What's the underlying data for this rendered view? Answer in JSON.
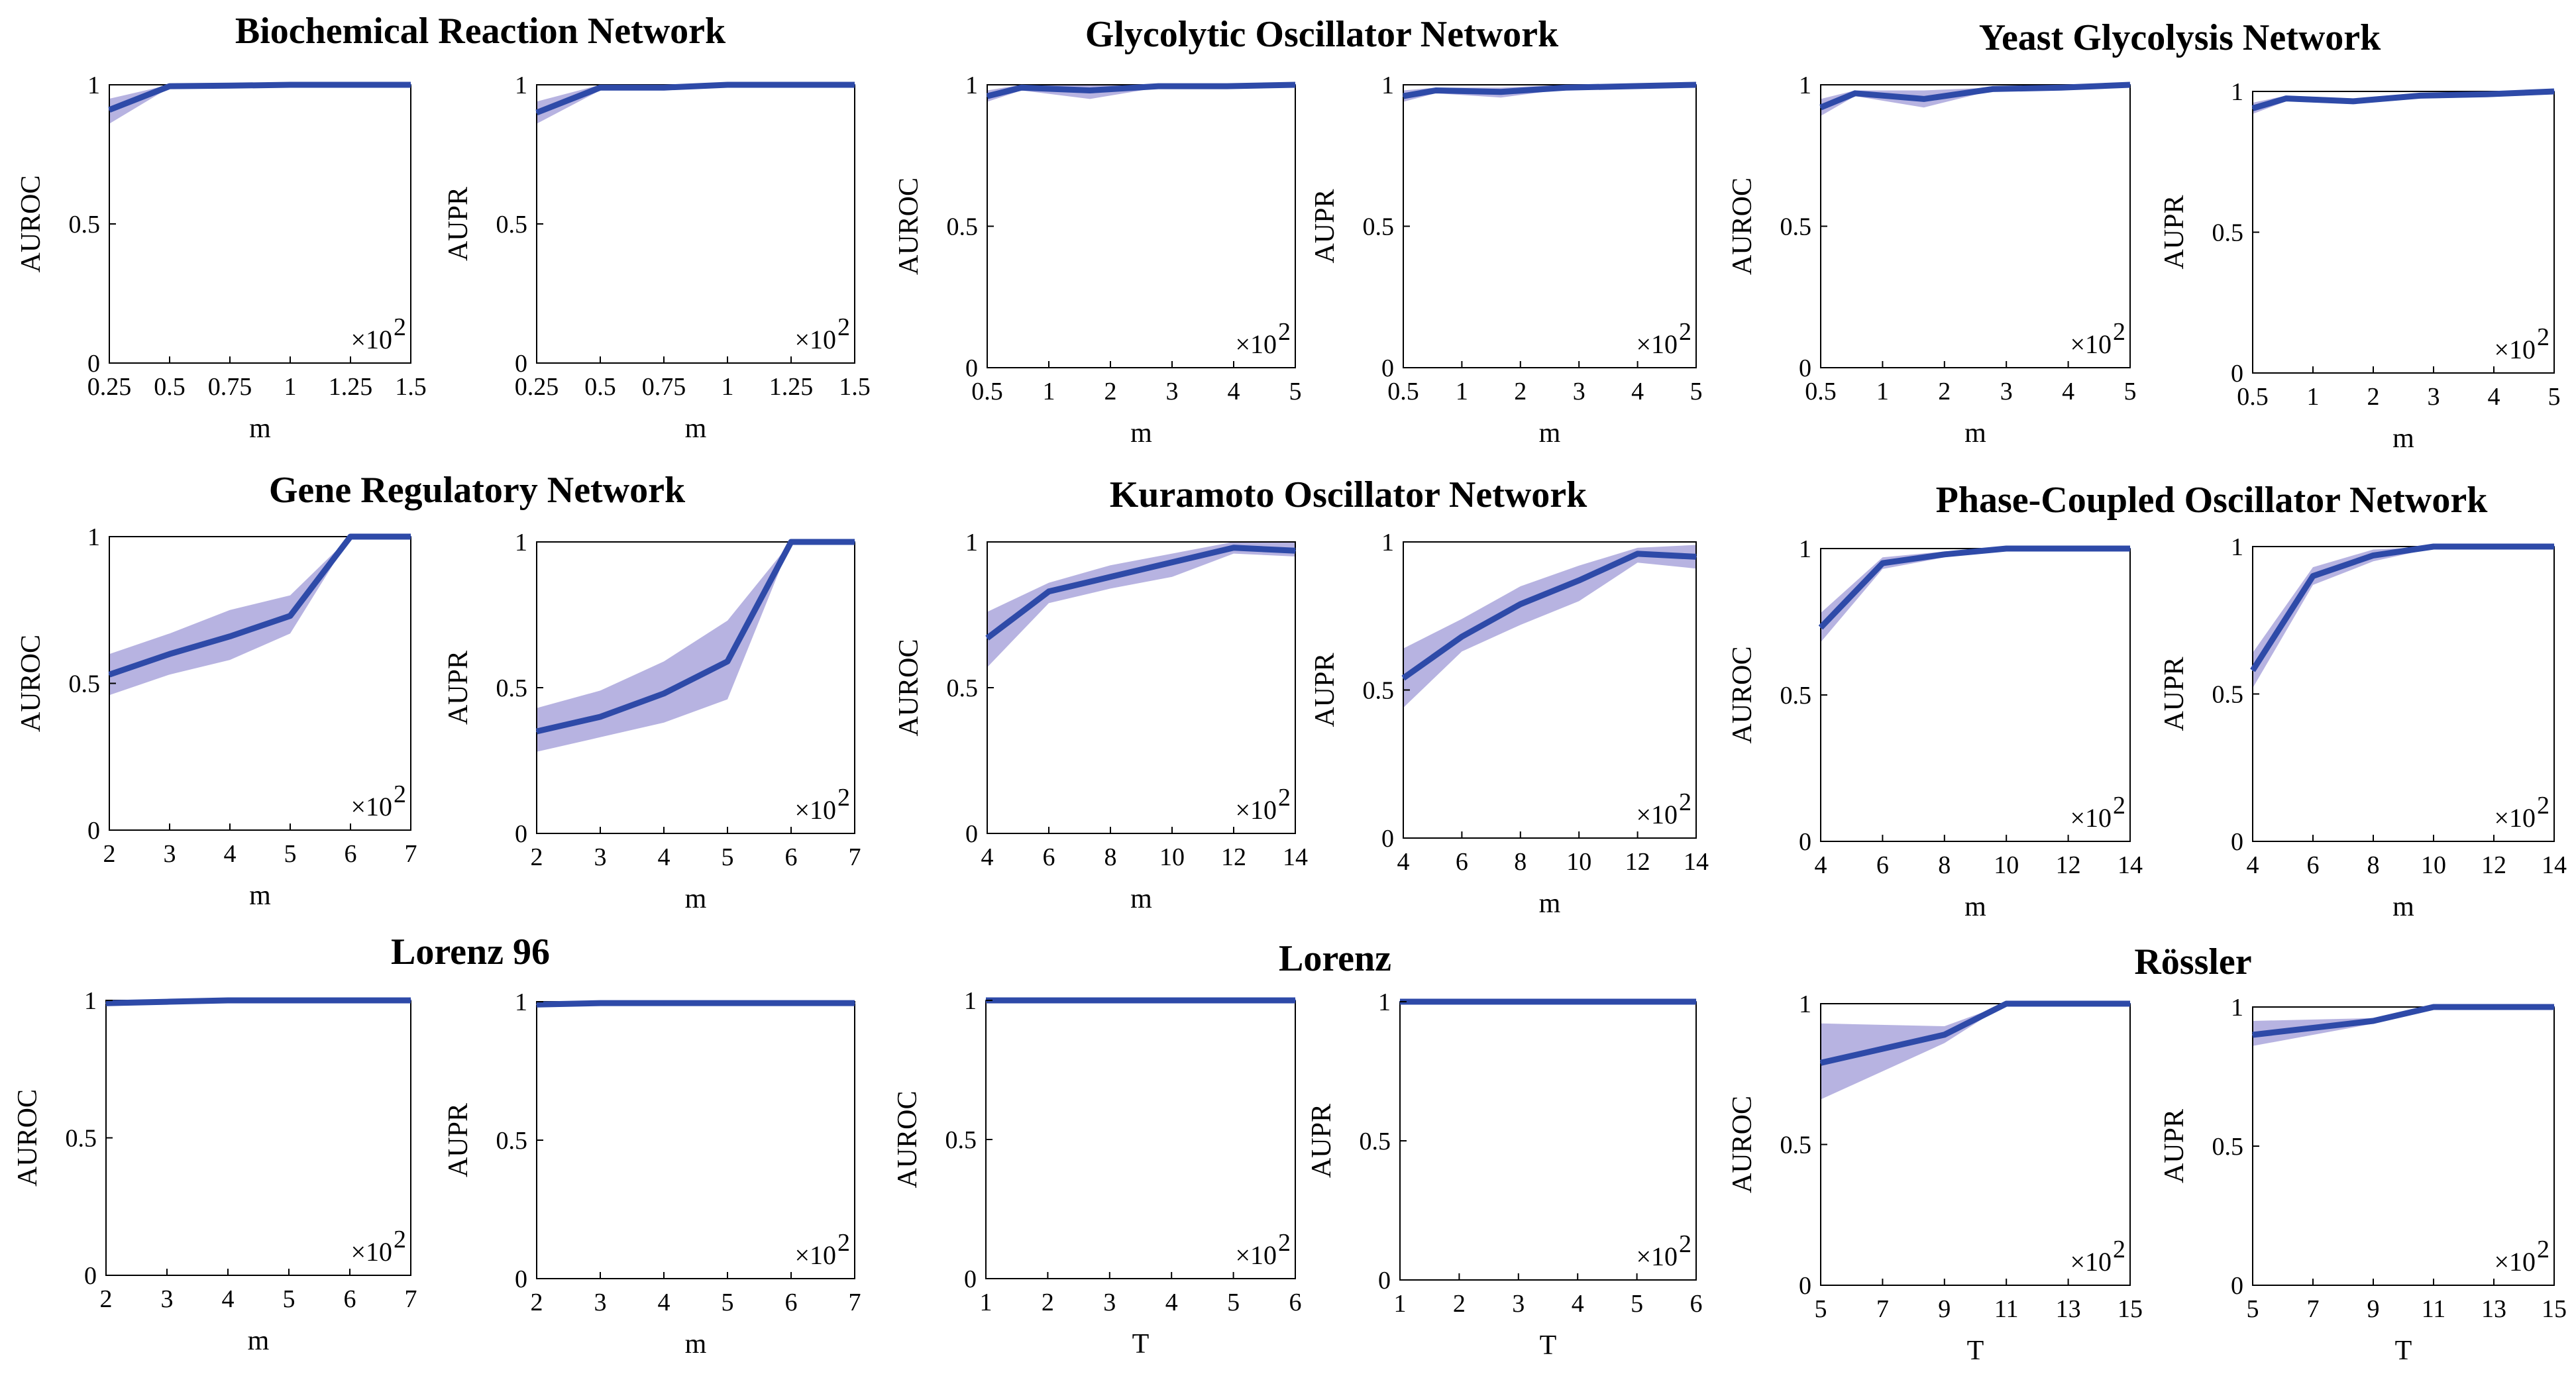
{
  "figure": {
    "group_titles": [
      "Biochemical Reaction Network",
      "Glycolytic Oscillator Network",
      "Yeast Glycolysis Network",
      "Gene Regulatory Network",
      "Kuramoto Oscillator Network",
      "Phase-Coupled Oscillator Network",
      "Lorenz 96",
      "Lorenz",
      "Rössler"
    ],
    "multiplier_label": "×10",
    "multiplier_exp": "2",
    "colors": {
      "line": "#2e4aa8",
      "band": "#aaa6dc",
      "axis": "#000000"
    }
  },
  "chart_data": [
    {
      "type": "line",
      "group": "Biochemical Reaction Network",
      "xlabel": "m",
      "ylabel": "AUROC",
      "multiplier": "×10^2",
      "x": [
        0.25,
        0.5,
        0.75,
        1,
        1.25,
        1.5
      ],
      "xticks": [
        "0.25",
        "0.5",
        "0.75",
        "1",
        "1.25",
        "1.5"
      ],
      "xlim": [
        0.25,
        1.5
      ],
      "yticks": [
        "0",
        "0.5",
        "1"
      ],
      "ylim": [
        0,
        1
      ],
      "y": [
        0.91,
        0.995,
        0.997,
        1,
        1,
        1
      ],
      "lower": [
        0.86,
        0.99,
        0.995,
        1,
        1,
        1
      ],
      "upper": [
        0.95,
        1,
        1,
        1,
        1,
        1
      ]
    },
    {
      "type": "line",
      "group": "Biochemical Reaction Network",
      "xlabel": "m",
      "ylabel": "AUPR",
      "multiplier": "×10^2",
      "x": [
        0.25,
        0.5,
        0.75,
        1,
        1.25,
        1.5
      ],
      "xticks": [
        "0.25",
        "0.5",
        "0.75",
        "1",
        "1.25",
        "1.5"
      ],
      "xlim": [
        0.25,
        1.5
      ],
      "yticks": [
        "0",
        "0.5",
        "1"
      ],
      "ylim": [
        0,
        1
      ],
      "y": [
        0.9,
        0.99,
        0.99,
        1,
        1,
        1
      ],
      "lower": [
        0.86,
        0.98,
        0.985,
        0.998,
        1,
        1
      ],
      "upper": [
        0.94,
        1,
        1,
        1,
        1,
        1
      ]
    },
    {
      "type": "line",
      "group": "Glycolytic Oscillator Network",
      "xlabel": "m",
      "ylabel": "AUROC",
      "multiplier": "×10^2",
      "x": [
        0.5,
        1,
        2,
        3,
        4,
        5
      ],
      "xticks": [
        "0.5",
        "1",
        "2",
        "3",
        "4",
        "5"
      ],
      "xlim": [
        0.5,
        5
      ],
      "yticks": [
        "0",
        "0.5",
        "1"
      ],
      "ylim": [
        0,
        1
      ],
      "y": [
        0.96,
        0.99,
        0.98,
        0.995,
        0.995,
        1
      ],
      "lower": [
        0.94,
        0.98,
        0.95,
        0.99,
        0.99,
        1
      ],
      "upper": [
        0.98,
        1,
        1,
        1,
        1,
        1
      ]
    },
    {
      "type": "line",
      "group": "Glycolytic Oscillator Network",
      "xlabel": "m",
      "ylabel": "AUPR",
      "multiplier": "×10^2",
      "x": [
        0.5,
        1,
        2,
        3,
        4,
        5
      ],
      "xticks": [
        "0.5",
        "1",
        "2",
        "3",
        "4",
        "5"
      ],
      "xlim": [
        0.5,
        5
      ],
      "yticks": [
        "0",
        "0.5",
        "1"
      ],
      "ylim": [
        0,
        1
      ],
      "y": [
        0.96,
        0.98,
        0.975,
        0.99,
        0.995,
        1
      ],
      "lower": [
        0.94,
        0.97,
        0.955,
        0.985,
        0.99,
        1
      ],
      "upper": [
        0.98,
        0.99,
        0.99,
        1,
        1,
        1
      ]
    },
    {
      "type": "line",
      "group": "Yeast Glycolysis Network",
      "xlabel": "m",
      "ylabel": "AUROC",
      "multiplier": "×10^2",
      "x": [
        0.5,
        1,
        2,
        3,
        4,
        5
      ],
      "xticks": [
        "0.5",
        "1",
        "2",
        "3",
        "4",
        "5"
      ],
      "xlim": [
        0.5,
        5
      ],
      "yticks": [
        "0",
        "0.5",
        "1"
      ],
      "ylim": [
        0,
        1
      ],
      "y": [
        0.92,
        0.97,
        0.95,
        0.985,
        0.99,
        1
      ],
      "lower": [
        0.89,
        0.96,
        0.92,
        0.98,
        0.985,
        1
      ],
      "upper": [
        0.95,
        0.98,
        0.98,
        0.99,
        1,
        1
      ]
    },
    {
      "type": "line",
      "group": "Yeast Glycolysis Network",
      "xlabel": "m",
      "ylabel": "AUPR",
      "multiplier": "×10^2",
      "x": [
        0.5,
        1,
        2,
        3,
        4,
        5
      ],
      "xticks": [
        "0.5",
        "1",
        "2",
        "3",
        "4",
        "5"
      ],
      "xlim": [
        0.5,
        5
      ],
      "yticks": [
        "0",
        "0.5",
        "1"
      ],
      "ylim": [
        0,
        1
      ],
      "y": [
        0.94,
        0.975,
        0.965,
        0.985,
        0.99,
        1
      ],
      "lower": [
        0.92,
        0.965,
        0.955,
        0.975,
        0.98,
        0.99
      ],
      "upper": [
        0.96,
        0.985,
        0.975,
        0.995,
        1,
        1
      ]
    },
    {
      "type": "line",
      "group": "Gene Regulatory Network",
      "xlabel": "m",
      "ylabel": "AUROC",
      "multiplier": "×10^2",
      "x": [
        2,
        3,
        4,
        5,
        6,
        7
      ],
      "xticks": [
        "2",
        "3",
        "4",
        "5",
        "6",
        "7"
      ],
      "xlim": [
        2,
        7
      ],
      "yticks": [
        "0",
        "0.5",
        "1"
      ],
      "ylim": [
        0,
        1
      ],
      "y": [
        0.53,
        0.6,
        0.66,
        0.73,
        1,
        1
      ],
      "lower": [
        0.46,
        0.53,
        0.58,
        0.67,
        1,
        1
      ],
      "upper": [
        0.6,
        0.67,
        0.75,
        0.8,
        1,
        1
      ]
    },
    {
      "type": "line",
      "group": "Gene Regulatory Network",
      "xlabel": "m",
      "ylabel": "AUPR",
      "multiplier": "×10^2",
      "x": [
        2,
        3,
        4,
        5,
        6,
        7
      ],
      "xticks": [
        "2",
        "3",
        "4",
        "5",
        "6",
        "7"
      ],
      "xlim": [
        2,
        7
      ],
      "yticks": [
        "0",
        "0.5",
        "1"
      ],
      "ylim": [
        0,
        1
      ],
      "y": [
        0.35,
        0.4,
        0.48,
        0.59,
        1,
        1
      ],
      "lower": [
        0.28,
        0.33,
        0.38,
        0.46,
        1,
        1
      ],
      "upper": [
        0.43,
        0.49,
        0.59,
        0.73,
        1,
        1
      ]
    },
    {
      "type": "line",
      "group": "Kuramoto Oscillator Network",
      "xlabel": "m",
      "ylabel": "AUROC",
      "multiplier": "×10^2",
      "x": [
        4,
        6,
        8,
        10,
        12,
        14
      ],
      "xticks": [
        "4",
        "6",
        "8",
        "10",
        "12",
        "14"
      ],
      "xlim": [
        4,
        14
      ],
      "yticks": [
        "0",
        "0.5",
        "1"
      ],
      "ylim": [
        0,
        1
      ],
      "y": [
        0.67,
        0.83,
        0.88,
        0.93,
        0.98,
        0.97
      ],
      "lower": [
        0.57,
        0.79,
        0.84,
        0.88,
        0.96,
        0.95
      ],
      "upper": [
        0.76,
        0.86,
        0.92,
        0.96,
        1,
        1
      ]
    },
    {
      "type": "line",
      "group": "Kuramoto Oscillator Network",
      "xlabel": "m",
      "ylabel": "AUPR",
      "multiplier": "×10^2",
      "x": [
        4,
        6,
        8,
        10,
        12,
        14
      ],
      "xticks": [
        "4",
        "6",
        "8",
        "10",
        "12",
        "14"
      ],
      "xlim": [
        4,
        14
      ],
      "yticks": [
        "0",
        "0.5",
        "1"
      ],
      "ylim": [
        0,
        1
      ],
      "y": [
        0.54,
        0.68,
        0.79,
        0.87,
        0.96,
        0.95
      ],
      "lower": [
        0.44,
        0.63,
        0.72,
        0.8,
        0.93,
        0.91
      ],
      "upper": [
        0.64,
        0.74,
        0.85,
        0.92,
        0.98,
        0.99
      ]
    },
    {
      "type": "line",
      "group": "Phase-Coupled Oscillator Network",
      "xlabel": "m",
      "ylabel": "AUROC",
      "multiplier": "×10^2",
      "x": [
        4,
        6,
        8,
        10,
        12,
        14
      ],
      "xticks": [
        "4",
        "6",
        "8",
        "10",
        "12",
        "14"
      ],
      "xlim": [
        4,
        14
      ],
      "yticks": [
        "0",
        "0.5",
        "1"
      ],
      "ylim": [
        0,
        1
      ],
      "y": [
        0.73,
        0.95,
        0.98,
        1,
        1,
        1
      ],
      "lower": [
        0.68,
        0.93,
        0.97,
        0.995,
        1,
        1
      ],
      "upper": [
        0.78,
        0.97,
        0.99,
        1,
        1,
        1
      ]
    },
    {
      "type": "line",
      "group": "Phase-Coupled Oscillator Network",
      "xlabel": "m",
      "ylabel": "AUPR",
      "multiplier": "×10^2",
      "x": [
        4,
        6,
        8,
        10,
        12,
        14
      ],
      "xticks": [
        "4",
        "6",
        "8",
        "10",
        "12",
        "14"
      ],
      "xlim": [
        4,
        14
      ],
      "yticks": [
        "0",
        "0.5",
        "1"
      ],
      "ylim": [
        0,
        1
      ],
      "y": [
        0.58,
        0.9,
        0.97,
        1,
        1,
        1
      ],
      "lower": [
        0.52,
        0.87,
        0.95,
        0.995,
        1,
        1
      ],
      "upper": [
        0.64,
        0.93,
        0.99,
        1,
        1,
        1
      ]
    },
    {
      "type": "line",
      "group": "Lorenz 96",
      "xlabel": "m",
      "ylabel": "AUROC",
      "multiplier": "×10^2",
      "x": [
        2,
        3,
        4,
        5,
        6,
        7
      ],
      "xticks": [
        "2",
        "3",
        "4",
        "5",
        "6",
        "7"
      ],
      "xlim": [
        2,
        7
      ],
      "yticks": [
        "0",
        "0.5",
        "1"
      ],
      "ylim": [
        0,
        1
      ],
      "y": [
        0.99,
        0.995,
        1,
        1,
        1,
        1
      ],
      "lower": [
        0.985,
        0.99,
        1,
        1,
        1,
        1
      ],
      "upper": [
        0.995,
        1,
        1,
        1,
        1,
        1
      ]
    },
    {
      "type": "line",
      "group": "Lorenz 96",
      "xlabel": "m",
      "ylabel": "AUPR",
      "multiplier": "×10^2",
      "x": [
        2,
        3,
        4,
        5,
        6,
        7
      ],
      "xticks": [
        "2",
        "3",
        "4",
        "5",
        "6",
        "7"
      ],
      "xlim": [
        2,
        7
      ],
      "yticks": [
        "0",
        "0.5",
        "1"
      ],
      "ylim": [
        0,
        1
      ],
      "y": [
        0.99,
        0.995,
        0.995,
        0.995,
        0.995,
        0.995
      ],
      "lower": [
        0.98,
        0.99,
        0.99,
        0.99,
        0.99,
        0.99
      ],
      "upper": [
        1,
        1,
        1,
        1,
        1,
        1
      ]
    },
    {
      "type": "line",
      "group": "Lorenz",
      "xlabel": "T",
      "ylabel": "AUROC",
      "multiplier": "×10^2",
      "x": [
        1,
        2,
        3,
        4,
        5,
        6
      ],
      "xticks": [
        "1",
        "2",
        "3",
        "4",
        "5",
        "6"
      ],
      "xlim": [
        1,
        6
      ],
      "yticks": [
        "0",
        "0.5",
        "1"
      ],
      "ylim": [
        0,
        1
      ],
      "y": [
        1,
        1,
        1,
        1,
        1,
        1
      ],
      "lower": [
        1,
        1,
        1,
        1,
        1,
        1
      ],
      "upper": [
        1,
        1,
        1,
        1,
        1,
        1
      ]
    },
    {
      "type": "line",
      "group": "Lorenz",
      "xlabel": "T",
      "ylabel": "AUPR",
      "multiplier": "×10^2",
      "x": [
        1,
        2,
        3,
        4,
        5,
        6
      ],
      "xticks": [
        "1",
        "2",
        "3",
        "4",
        "5",
        "6"
      ],
      "xlim": [
        1,
        6
      ],
      "yticks": [
        "0",
        "0.5",
        "1"
      ],
      "ylim": [
        0,
        1
      ],
      "y": [
        1,
        1,
        1,
        1,
        1,
        1
      ],
      "lower": [
        1,
        1,
        1,
        1,
        1,
        1
      ],
      "upper": [
        1,
        1,
        1,
        1,
        1,
        1
      ]
    },
    {
      "type": "line",
      "group": "Rössler",
      "xlabel": "T",
      "ylabel": "AUROC",
      "multiplier": "×10^2",
      "x": [
        5,
        9,
        11,
        13,
        15
      ],
      "xticks": [
        "5",
        "7",
        "9",
        "11",
        "13",
        "15"
      ],
      "xlim": [
        5,
        15
      ],
      "yticks": [
        "0",
        "0.5",
        "1"
      ],
      "ylim": [
        0,
        1
      ],
      "y": [
        0.79,
        0.89,
        1,
        1,
        1
      ],
      "lower": [
        0.66,
        0.86,
        1,
        1,
        1
      ],
      "upper": [
        0.93,
        0.92,
        1,
        1,
        1
      ]
    },
    {
      "type": "line",
      "group": "Rössler",
      "xlabel": "T",
      "ylabel": "AUPR",
      "multiplier": "×10^2",
      "x": [
        5,
        9,
        11,
        13,
        15
      ],
      "xticks": [
        "5",
        "7",
        "9",
        "11",
        "13",
        "15"
      ],
      "xlim": [
        5,
        15
      ],
      "yticks": [
        "0",
        "0.5",
        "1"
      ],
      "ylim": [
        0,
        1
      ],
      "y": [
        0.9,
        0.95,
        1,
        1,
        1
      ],
      "lower": [
        0.86,
        0.94,
        1,
        1,
        1
      ],
      "upper": [
        0.95,
        0.96,
        1,
        1,
        1
      ]
    }
  ]
}
